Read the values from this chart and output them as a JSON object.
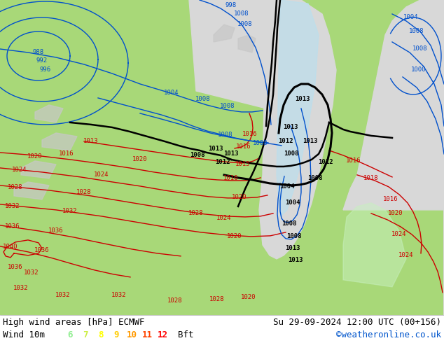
{
  "title_left": "High wind areas [hPa] ECMWF",
  "title_right": "Su 29-09-2024 12:00 UTC (00+156)",
  "subtitle_left": "Wind 10m",
  "bft_label": "Bft",
  "copyright": "©weatheronline.co.uk",
  "bft_values": [
    "6",
    "7",
    "8",
    "9",
    "10",
    "11",
    "12"
  ],
  "bft_colors": [
    "#90ee90",
    "#ccee44",
    "#ffff00",
    "#ffcc00",
    "#ff9900",
    "#ff4400",
    "#ff0000"
  ],
  "legend_bg": "#ffffff",
  "title_fontsize": 9,
  "legend_fontsize": 9,
  "land_green": "#a8d878",
  "land_gray": "#c8c8c8",
  "sea_gray": "#d8d8d8",
  "wind_light": "#c8f0c0",
  "wind_blue": "#b8e0f0",
  "black": "#000000",
  "blue": "#0050cc",
  "red": "#cc0000",
  "label_fs": 6.5
}
